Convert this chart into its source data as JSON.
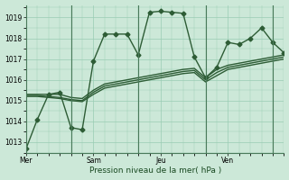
{
  "bg_color": "#cce8d8",
  "grid_color": "#99ccb3",
  "line_color": "#2d5c35",
  "marker": "D",
  "markersize": 2.5,
  "linewidth": 1.0,
  "xlabel": "Pression niveau de la mer( hPa )",
  "ylim": [
    1012.5,
    1019.6
  ],
  "yticks": [
    1013,
    1014,
    1015,
    1016,
    1017,
    1018,
    1019
  ],
  "xlim": [
    0,
    23
  ],
  "vline_positions": [
    4,
    10,
    16,
    22
  ],
  "xtick_positions": [
    0,
    6,
    12,
    18
  ],
  "xtick_labels": [
    "Mer",
    "Sam",
    "Jeu",
    "Ven"
  ],
  "series": [
    [
      1012.7,
      1014.1,
      1015.3,
      1015.4,
      1013.7,
      1013.6,
      1016.9,
      1018.2,
      1018.2,
      1018.2,
      1017.2,
      1019.25,
      1019.3,
      1019.25,
      1019.2,
      1017.1,
      1016.1,
      1016.6,
      1017.8,
      1017.7,
      1018.0,
      1018.5,
      1017.8,
      1017.3
    ],
    [
      1015.3,
      1015.3,
      1015.3,
      1015.3,
      1015.15,
      1015.1,
      1015.5,
      1015.8,
      1015.9,
      1016.0,
      1016.1,
      1016.2,
      1016.3,
      1016.4,
      1016.5,
      1016.55,
      1016.1,
      1016.5,
      1016.7,
      1016.8,
      1016.9,
      1017.0,
      1017.1,
      1017.2
    ],
    [
      1015.2,
      1015.2,
      1015.15,
      1015.1,
      1015.0,
      1014.95,
      1015.3,
      1015.6,
      1015.7,
      1015.8,
      1015.9,
      1016.0,
      1016.1,
      1016.2,
      1016.3,
      1016.35,
      1015.9,
      1016.2,
      1016.5,
      1016.6,
      1016.7,
      1016.8,
      1016.9,
      1017.0
    ],
    [
      1015.25,
      1015.25,
      1015.2,
      1015.15,
      1015.05,
      1015.0,
      1015.4,
      1015.7,
      1015.8,
      1015.9,
      1016.0,
      1016.1,
      1016.2,
      1016.3,
      1016.4,
      1016.45,
      1016.0,
      1016.35,
      1016.6,
      1016.7,
      1016.8,
      1016.9,
      1017.0,
      1017.1
    ]
  ],
  "show_markers": [
    true,
    false,
    false,
    false
  ],
  "linestyles": [
    "-",
    "-",
    "-",
    "-"
  ]
}
